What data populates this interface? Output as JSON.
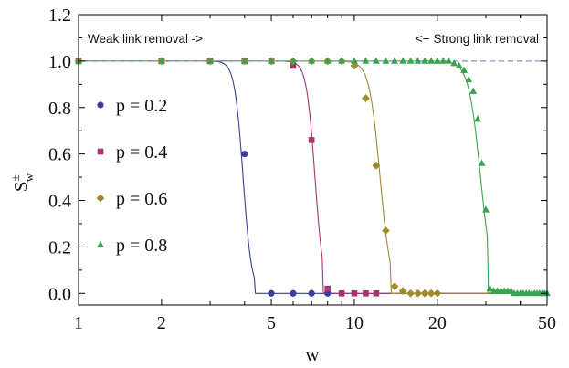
{
  "chart_data": {
    "type": "scatter",
    "title": "",
    "xlabel": "w",
    "ylabel": "S",
    "ylabel_sup": "±",
    "ylabel_sub": "w",
    "xscale": "log",
    "xlim": [
      1,
      50
    ],
    "ylim": [
      -0.05,
      1.2
    ],
    "xticks": [
      1,
      2,
      5,
      10,
      20,
      50
    ],
    "xtick_labels": [
      "1",
      "2",
      "5",
      "10",
      "20",
      "50"
    ],
    "yticks": [
      0.0,
      0.2,
      0.4,
      0.6,
      0.8,
      1.0,
      1.2
    ],
    "ytick_labels": [
      "0.0",
      "0.2",
      "0.4",
      "0.6",
      "0.8",
      "1.0",
      "1.2"
    ],
    "reference_line": {
      "y": 1.0,
      "style": "dashed",
      "color": "#8c8cc8"
    },
    "annotations": {
      "left": "Weak link removal ->",
      "right": "<− Strong link removal"
    },
    "legend_position": "left",
    "series": [
      {
        "name": "p = 0.2",
        "marker": "circle",
        "color": "#3b3f9a",
        "x": [
          1,
          2,
          3,
          4,
          5,
          6,
          7,
          8
        ],
        "y": [
          1.0,
          1.0,
          1.0,
          0.6,
          0.0,
          0.0,
          0.0,
          0.0
        ],
        "fit_center": 3.95,
        "fit_steep": 28,
        "fit_cut": 4.35
      },
      {
        "name": "p = 0.4",
        "marker": "square",
        "color": "#a8326e",
        "x": [
          1,
          2,
          3,
          4,
          5,
          6,
          7,
          8,
          9,
          10,
          11,
          12
        ],
        "y": [
          1.0,
          1.0,
          1.0,
          1.0,
          1.0,
          0.98,
          0.66,
          0.02,
          0.0,
          0.0,
          0.0,
          0.0
        ],
        "fit_center": 7.2,
        "fit_steep": 28,
        "fit_cut": 7.7
      },
      {
        "name": "p = 0.6",
        "marker": "diamond",
        "color": "#a08a2e",
        "x": [
          1,
          2,
          3,
          4,
          5,
          6,
          7,
          8,
          9,
          10,
          11,
          12,
          13,
          14,
          15,
          16,
          17,
          18,
          19,
          20
        ],
        "y": [
          1.0,
          1.0,
          1.0,
          1.0,
          1.0,
          1.0,
          1.0,
          1.0,
          1.0,
          0.98,
          0.84,
          0.55,
          0.27,
          0.03,
          0.01,
          0.0,
          0.0,
          0.0,
          0.0,
          0.0
        ],
        "fit_center": 12.4,
        "fit_steep": 22,
        "fit_cut": 13.6
      },
      {
        "name": "p = 0.8",
        "marker": "triangle",
        "color": "#3aa34f",
        "x": [
          1,
          2,
          3,
          4,
          5,
          6,
          7,
          8,
          9,
          10,
          11,
          12,
          13,
          14,
          15,
          16,
          17,
          18,
          19,
          20,
          21,
          22,
          23,
          24,
          25,
          26,
          27,
          28,
          29,
          30,
          31,
          32,
          33,
          34,
          35,
          36,
          37,
          38,
          39,
          40,
          41,
          42,
          43,
          44,
          45,
          46,
          47,
          48,
          49,
          50
        ],
        "y": [
          1.0,
          1.0,
          1.0,
          1.0,
          1.0,
          1.0,
          1.0,
          1.0,
          1.0,
          1.0,
          1.0,
          1.0,
          1.0,
          1.0,
          1.0,
          1.0,
          1.0,
          1.0,
          1.0,
          1.0,
          1.0,
          1.0,
          0.99,
          0.98,
          0.96,
          0.92,
          0.87,
          0.75,
          0.56,
          0.36,
          0.02,
          0.01,
          0.01,
          0.01,
          0.01,
          0.01,
          0.01,
          0.0,
          0.0,
          0.0,
          0.0,
          0.0,
          0.0,
          0.0,
          0.0,
          0.0,
          0.0,
          0.0,
          0.0,
          0.0
        ],
        "fit_center": 28.7,
        "fit_steep": 20,
        "fit_cut": 30.4
      }
    ]
  }
}
